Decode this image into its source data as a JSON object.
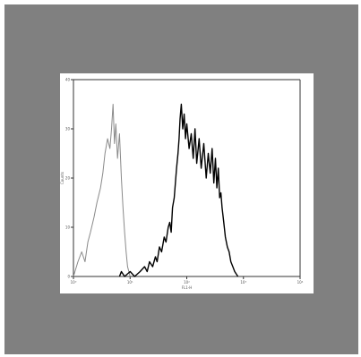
{
  "chart_data": {
    "type": "line",
    "title": "",
    "xlabel": "FL1-H",
    "ylabel": "Counts",
    "x_scale": "log",
    "xlim": [
      1,
      10000
    ],
    "ylim": [
      0,
      40
    ],
    "x_ticks": [
      {
        "value": 1,
        "label": "10⁰"
      },
      {
        "value": 10,
        "label": "10¹"
      },
      {
        "value": 100,
        "label": "10²"
      },
      {
        "value": 1000,
        "label": "10³"
      },
      {
        "value": 10000,
        "label": "10⁴"
      }
    ],
    "y_ticks": [
      {
        "value": 0,
        "label": "0"
      },
      {
        "value": 10,
        "label": "10"
      },
      {
        "value": 20,
        "label": "20"
      },
      {
        "value": 30,
        "label": "30"
      },
      {
        "value": 40,
        "label": "40"
      }
    ],
    "grid": false,
    "legend": "none",
    "series": [
      {
        "color": "#8a8a8a",
        "x": [
          1.0,
          1.2,
          1.4,
          1.6,
          1.8,
          2.0,
          2.3,
          2.6,
          3.0,
          3.3,
          3.6,
          4.0,
          4.4,
          4.7,
          5.0,
          5.3,
          5.6,
          6.0,
          6.5,
          7.0,
          7.5,
          8.0,
          8.5,
          9.0,
          10.0
        ],
        "y": [
          0,
          3,
          5,
          3,
          7,
          9,
          12,
          15,
          18,
          21,
          25,
          28,
          26,
          30,
          35,
          27,
          31,
          24,
          29,
          20,
          14,
          9,
          5,
          2,
          0
        ]
      },
      {
        "color": "#000000",
        "x": [
          6.5,
          7.0,
          8,
          10,
          12,
          15,
          18,
          20,
          22,
          25,
          28,
          30,
          33,
          36,
          40,
          43,
          47,
          50,
          53,
          56,
          60,
          63,
          66,
          70,
          73,
          76,
          80,
          85,
          90,
          95,
          100,
          110,
          120,
          130,
          140,
          150,
          165,
          180,
          200,
          220,
          240,
          260,
          280,
          300,
          320,
          340,
          360,
          380,
          400,
          420,
          450,
          480,
          520,
          560,
          600,
          650,
          700,
          750,
          800
        ],
        "y": [
          0,
          1,
          0,
          1,
          0,
          1,
          2,
          1,
          3,
          2,
          4,
          3,
          6,
          5,
          8,
          7,
          10,
          11,
          9,
          14,
          16,
          19,
          22,
          25,
          28,
          32,
          35,
          30,
          33,
          28,
          31,
          26,
          29,
          24,
          30,
          23,
          28,
          22,
          27,
          20,
          25,
          21,
          26,
          19,
          24,
          18,
          22,
          16,
          17,
          14,
          11,
          8,
          6,
          5,
          3,
          2,
          1,
          0.5,
          0
        ]
      }
    ]
  }
}
